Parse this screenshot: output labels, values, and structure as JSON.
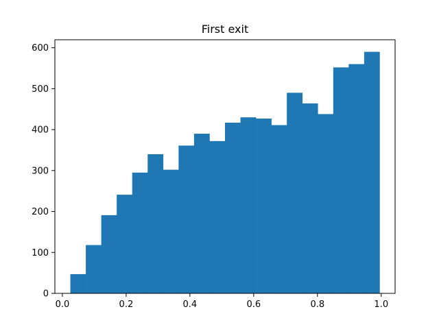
{
  "chart_data": {
    "type": "bar",
    "title": "First exit",
    "xlabel": "",
    "ylabel": "",
    "bin_edges": [
      0.025,
      0.0735,
      0.122,
      0.1705,
      0.219,
      0.2675,
      0.316,
      0.3645,
      0.413,
      0.4615,
      0.51,
      0.5585,
      0.607,
      0.6555,
      0.704,
      0.7525,
      0.801,
      0.8495,
      0.898,
      0.9465,
      0.995
    ],
    "values": [
      47,
      118,
      191,
      241,
      295,
      340,
      302,
      361,
      390,
      372,
      417,
      430,
      427,
      411,
      490,
      464,
      438,
      552,
      560,
      590
    ],
    "xlim": [
      -0.0235,
      1.0435
    ],
    "ylim": [
      0,
      619.5
    ],
    "xticks": [
      0.0,
      0.2,
      0.4,
      0.6,
      0.8,
      1.0
    ],
    "xtick_labels": [
      "0.0",
      "0.2",
      "0.4",
      "0.6",
      "0.8",
      "1.0"
    ],
    "yticks": [
      0,
      100,
      200,
      300,
      400,
      500,
      600
    ],
    "ytick_labels": [
      "0",
      "100",
      "200",
      "300",
      "400",
      "500",
      "600"
    ],
    "bar_color": "#1f77b4",
    "grid": false
  }
}
